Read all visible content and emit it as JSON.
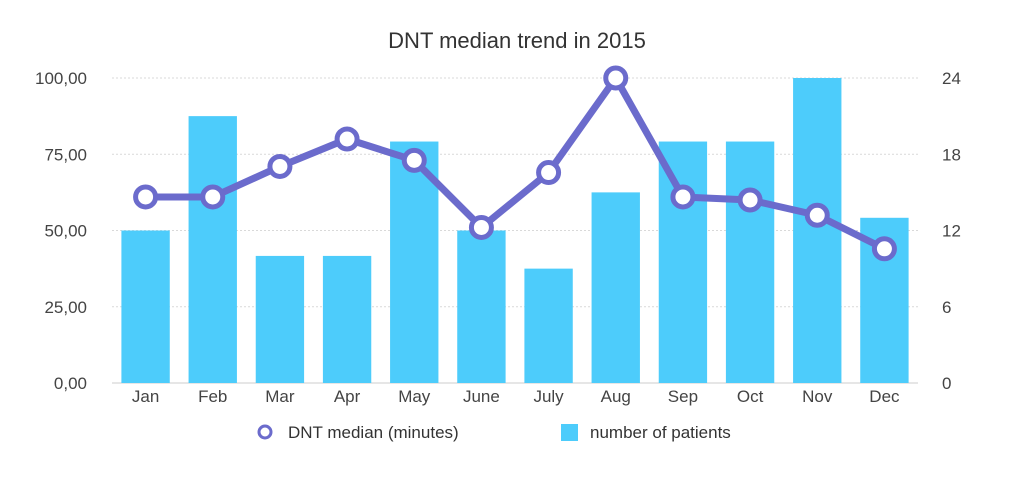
{
  "colors": {
    "bars": "#4DCCFB",
    "line": "#6B6BCC",
    "marker_fill": "#ffffff"
  },
  "chart_data": {
    "type": "bar",
    "title": "DNT median trend in 2015",
    "categories": [
      "Jan",
      "Feb",
      "Mar",
      "Apr",
      "May",
      "June",
      "July",
      "Aug",
      "Sep",
      "Oct",
      "Nov",
      "Dec"
    ],
    "y_left": {
      "ticks": [
        "0,00",
        "25,00",
        "50,00",
        "75,00",
        "100,00"
      ],
      "ylim": [
        0,
        100
      ]
    },
    "y_right": {
      "ticks": [
        "0",
        "6",
        "12",
        "18",
        "24"
      ],
      "ylim": [
        0,
        24
      ]
    },
    "grid": true,
    "legend_position": "bottom",
    "series": [
      {
        "name": "number of patients",
        "type": "bar",
        "axis": "right",
        "values": [
          12,
          21,
          10,
          10,
          19,
          12,
          9,
          15,
          19,
          19,
          24,
          13
        ]
      },
      {
        "name": "DNT median (minutes)",
        "type": "line",
        "axis": "left",
        "values": [
          61,
          61,
          71,
          80,
          73,
          51,
          69,
          100,
          61,
          60,
          55,
          44
        ]
      }
    ]
  }
}
